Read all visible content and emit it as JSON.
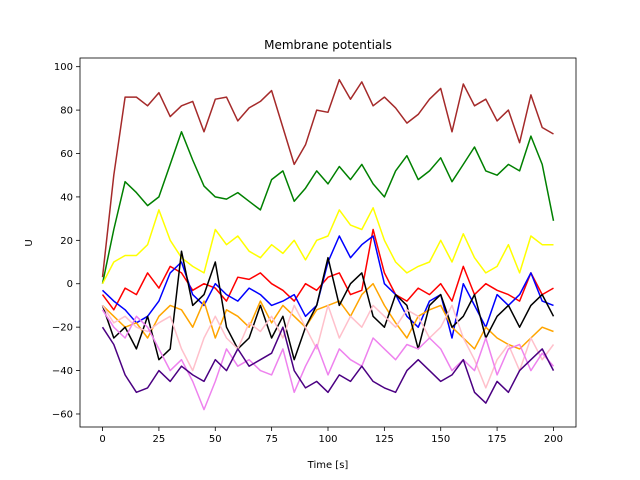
{
  "chart_data": {
    "type": "line",
    "title": "Membrane potentials",
    "xlabel": "Time [s]",
    "ylabel": "U",
    "xlim": [
      -10,
      210
    ],
    "ylim": [
      -66,
      104
    ],
    "xticks": [
      0,
      25,
      50,
      75,
      100,
      125,
      150,
      175,
      200
    ],
    "yticks": [
      -60,
      -40,
      -20,
      0,
      20,
      40,
      60,
      80,
      100
    ],
    "grid": false,
    "legend": "none",
    "series": [
      {
        "color": "#a52a2a",
        "x": [
          0,
          5,
          10,
          15,
          20,
          25,
          30,
          35,
          40,
          45,
          50,
          55,
          60,
          65,
          70,
          75,
          80,
          85,
          90,
          95,
          100,
          105,
          110,
          115,
          120,
          125,
          130,
          135,
          140,
          145,
          150,
          155,
          160,
          165,
          170,
          175,
          180,
          185,
          190,
          195,
          200
        ],
        "y": [
          3,
          50,
          86,
          86,
          82,
          88,
          77,
          82,
          84,
          70,
          85,
          86,
          75,
          81,
          84,
          89,
          72,
          55,
          64,
          80,
          79,
          94,
          85,
          93,
          82,
          86,
          81,
          74,
          78,
          85,
          90,
          70,
          92,
          82,
          85,
          75,
          80,
          65,
          87,
          72,
          69
        ]
      },
      {
        "color": "#008000",
        "x": [
          0,
          5,
          10,
          15,
          20,
          25,
          30,
          35,
          40,
          45,
          50,
          55,
          60,
          65,
          70,
          75,
          80,
          85,
          90,
          95,
          100,
          105,
          110,
          115,
          120,
          125,
          130,
          135,
          140,
          145,
          150,
          155,
          160,
          165,
          170,
          175,
          180,
          185,
          190,
          195,
          200
        ],
        "y": [
          0,
          25,
          47,
          42,
          36,
          40,
          55,
          70,
          57,
          45,
          40,
          39,
          42,
          38,
          34,
          48,
          52,
          38,
          44,
          52,
          46,
          54,
          48,
          55,
          46,
          40,
          52,
          59,
          48,
          52,
          58,
          47,
          55,
          63,
          52,
          50,
          55,
          52,
          68,
          55,
          29
        ]
      },
      {
        "color": "#ffff00",
        "x": [
          0,
          5,
          10,
          15,
          20,
          25,
          30,
          35,
          40,
          45,
          50,
          55,
          60,
          65,
          70,
          75,
          80,
          85,
          90,
          95,
          100,
          105,
          110,
          115,
          120,
          125,
          130,
          135,
          140,
          145,
          150,
          155,
          160,
          165,
          170,
          175,
          180,
          185,
          190,
          195,
          200
        ],
        "y": [
          0,
          10,
          13,
          13,
          18,
          34,
          20,
          12,
          8,
          5,
          25,
          18,
          22,
          15,
          12,
          18,
          14,
          20,
          11,
          20,
          22,
          34,
          27,
          25,
          35,
          20,
          10,
          5,
          8,
          10,
          20,
          10,
          23,
          12,
          5,
          8,
          18,
          5,
          22,
          18,
          18
        ]
      },
      {
        "color": "#ff0000",
        "x": [
          0,
          5,
          10,
          15,
          20,
          25,
          30,
          35,
          40,
          45,
          50,
          55,
          60,
          65,
          70,
          75,
          80,
          85,
          90,
          95,
          100,
          105,
          110,
          115,
          120,
          125,
          130,
          135,
          140,
          145,
          150,
          155,
          160,
          165,
          170,
          175,
          180,
          185,
          190,
          195,
          200
        ],
        "y": [
          -5,
          -12,
          -2,
          -5,
          5,
          -2,
          8,
          5,
          -3,
          0,
          -2,
          -8,
          3,
          2,
          5,
          0,
          -3,
          -8,
          0,
          -3,
          3,
          5,
          -5,
          -3,
          25,
          5,
          -5,
          -8,
          -2,
          -5,
          0,
          -8,
          8,
          -5,
          0,
          -3,
          -5,
          -8,
          5,
          -5,
          -2
        ]
      },
      {
        "color": "#0000ff",
        "x": [
          0,
          5,
          10,
          15,
          20,
          25,
          30,
          35,
          40,
          45,
          50,
          55,
          60,
          65,
          70,
          75,
          80,
          85,
          90,
          95,
          100,
          105,
          110,
          115,
          120,
          125,
          130,
          135,
          140,
          145,
          150,
          155,
          160,
          165,
          170,
          175,
          180,
          185,
          190,
          195,
          200
        ],
        "y": [
          -3,
          -8,
          -12,
          -18,
          -15,
          -8,
          5,
          10,
          -5,
          -10,
          0,
          -5,
          -8,
          -2,
          -5,
          -10,
          -8,
          -5,
          -15,
          -10,
          10,
          22,
          12,
          18,
          22,
          0,
          -5,
          -15,
          -20,
          -8,
          -5,
          -25,
          0,
          -10,
          -20,
          -5,
          -10,
          -5,
          5,
          -8,
          -10
        ]
      },
      {
        "color": "#ffa500",
        "x": [
          0,
          5,
          10,
          15,
          20,
          25,
          30,
          35,
          40,
          45,
          50,
          55,
          60,
          65,
          70,
          75,
          80,
          85,
          90,
          95,
          100,
          105,
          110,
          115,
          120,
          125,
          130,
          135,
          140,
          145,
          150,
          155,
          160,
          165,
          170,
          175,
          180,
          185,
          190,
          195,
          200
        ],
        "y": [
          -10,
          -15,
          -20,
          -18,
          -25,
          -15,
          -10,
          -12,
          -20,
          -8,
          -25,
          -12,
          -15,
          -20,
          -8,
          -18,
          -10,
          -15,
          -20,
          -12,
          -10,
          -8,
          -15,
          -5,
          0,
          -10,
          -18,
          -25,
          -15,
          -12,
          -10,
          -20,
          -25,
          -30,
          -20,
          -25,
          -28,
          -30,
          -25,
          -20,
          -22
        ]
      },
      {
        "color": "#000000",
        "x": [
          0,
          5,
          10,
          15,
          20,
          25,
          30,
          35,
          40,
          45,
          50,
          55,
          60,
          65,
          70,
          75,
          80,
          85,
          90,
          95,
          100,
          105,
          110,
          115,
          120,
          125,
          130,
          135,
          140,
          145,
          150,
          155,
          160,
          165,
          170,
          175,
          180,
          185,
          190,
          195,
          200
        ],
        "y": [
          -10,
          -25,
          -20,
          -30,
          -15,
          -35,
          -30,
          15,
          -10,
          -5,
          10,
          -20,
          -30,
          -25,
          -10,
          -25,
          -15,
          -35,
          -20,
          -10,
          12,
          -10,
          0,
          5,
          -15,
          -20,
          -5,
          -10,
          -30,
          -10,
          -5,
          -20,
          -15,
          -5,
          -25,
          -15,
          -10,
          -20,
          -10,
          -5,
          -15
        ]
      },
      {
        "color": "#ffc0cb",
        "x": [
          0,
          5,
          10,
          15,
          20,
          25,
          30,
          35,
          40,
          45,
          50,
          55,
          60,
          65,
          70,
          75,
          80,
          85,
          90,
          95,
          100,
          105,
          110,
          115,
          120,
          125,
          130,
          135,
          140,
          145,
          150,
          155,
          160,
          165,
          170,
          175,
          180,
          185,
          190,
          195,
          200
        ],
        "y": [
          -10,
          -18,
          -15,
          -20,
          -22,
          -18,
          -15,
          -30,
          -40,
          -25,
          -15,
          -25,
          -30,
          -18,
          -22,
          -15,
          -25,
          -10,
          -20,
          -30,
          -10,
          -25,
          -15,
          -20,
          -10,
          -15,
          -20,
          -12,
          -15,
          -25,
          -20,
          -10,
          -25,
          -35,
          -48,
          -35,
          -28,
          -40,
          -25,
          -35,
          -28
        ]
      },
      {
        "color": "#ee82ee",
        "x": [
          0,
          5,
          10,
          15,
          20,
          25,
          30,
          35,
          40,
          45,
          50,
          55,
          60,
          65,
          70,
          75,
          80,
          85,
          90,
          95,
          100,
          105,
          110,
          115,
          120,
          125,
          130,
          135,
          140,
          145,
          150,
          155,
          160,
          165,
          170,
          175,
          180,
          185,
          190,
          195,
          200
        ],
        "y": [
          -12,
          -20,
          -25,
          -15,
          -20,
          -30,
          -40,
          -35,
          -45,
          -58,
          -45,
          -30,
          -38,
          -35,
          -40,
          -42,
          -30,
          -50,
          -38,
          -28,
          -42,
          -30,
          -35,
          -38,
          -25,
          -30,
          -35,
          -28,
          -30,
          -25,
          -30,
          -40,
          -35,
          -40,
          -25,
          -42,
          -30,
          -28,
          -40,
          -32,
          -38
        ]
      },
      {
        "color": "#4b0082",
        "x": [
          0,
          5,
          10,
          15,
          20,
          25,
          30,
          35,
          40,
          45,
          50,
          55,
          60,
          65,
          70,
          75,
          80,
          85,
          90,
          95,
          100,
          105,
          110,
          115,
          120,
          125,
          130,
          135,
          140,
          145,
          150,
          155,
          160,
          165,
          170,
          175,
          180,
          185,
          190,
          195,
          200
        ],
        "y": [
          -20,
          -28,
          -42,
          -50,
          -48,
          -40,
          -45,
          -38,
          -42,
          -45,
          -35,
          -40,
          -30,
          -38,
          -35,
          -32,
          -20,
          -40,
          -48,
          -45,
          -50,
          -42,
          -45,
          -38,
          -45,
          -48,
          -50,
          -40,
          -35,
          -40,
          -45,
          -42,
          -35,
          -50,
          -55,
          -45,
          -50,
          -40,
          -35,
          -30,
          -40
        ]
      }
    ]
  }
}
